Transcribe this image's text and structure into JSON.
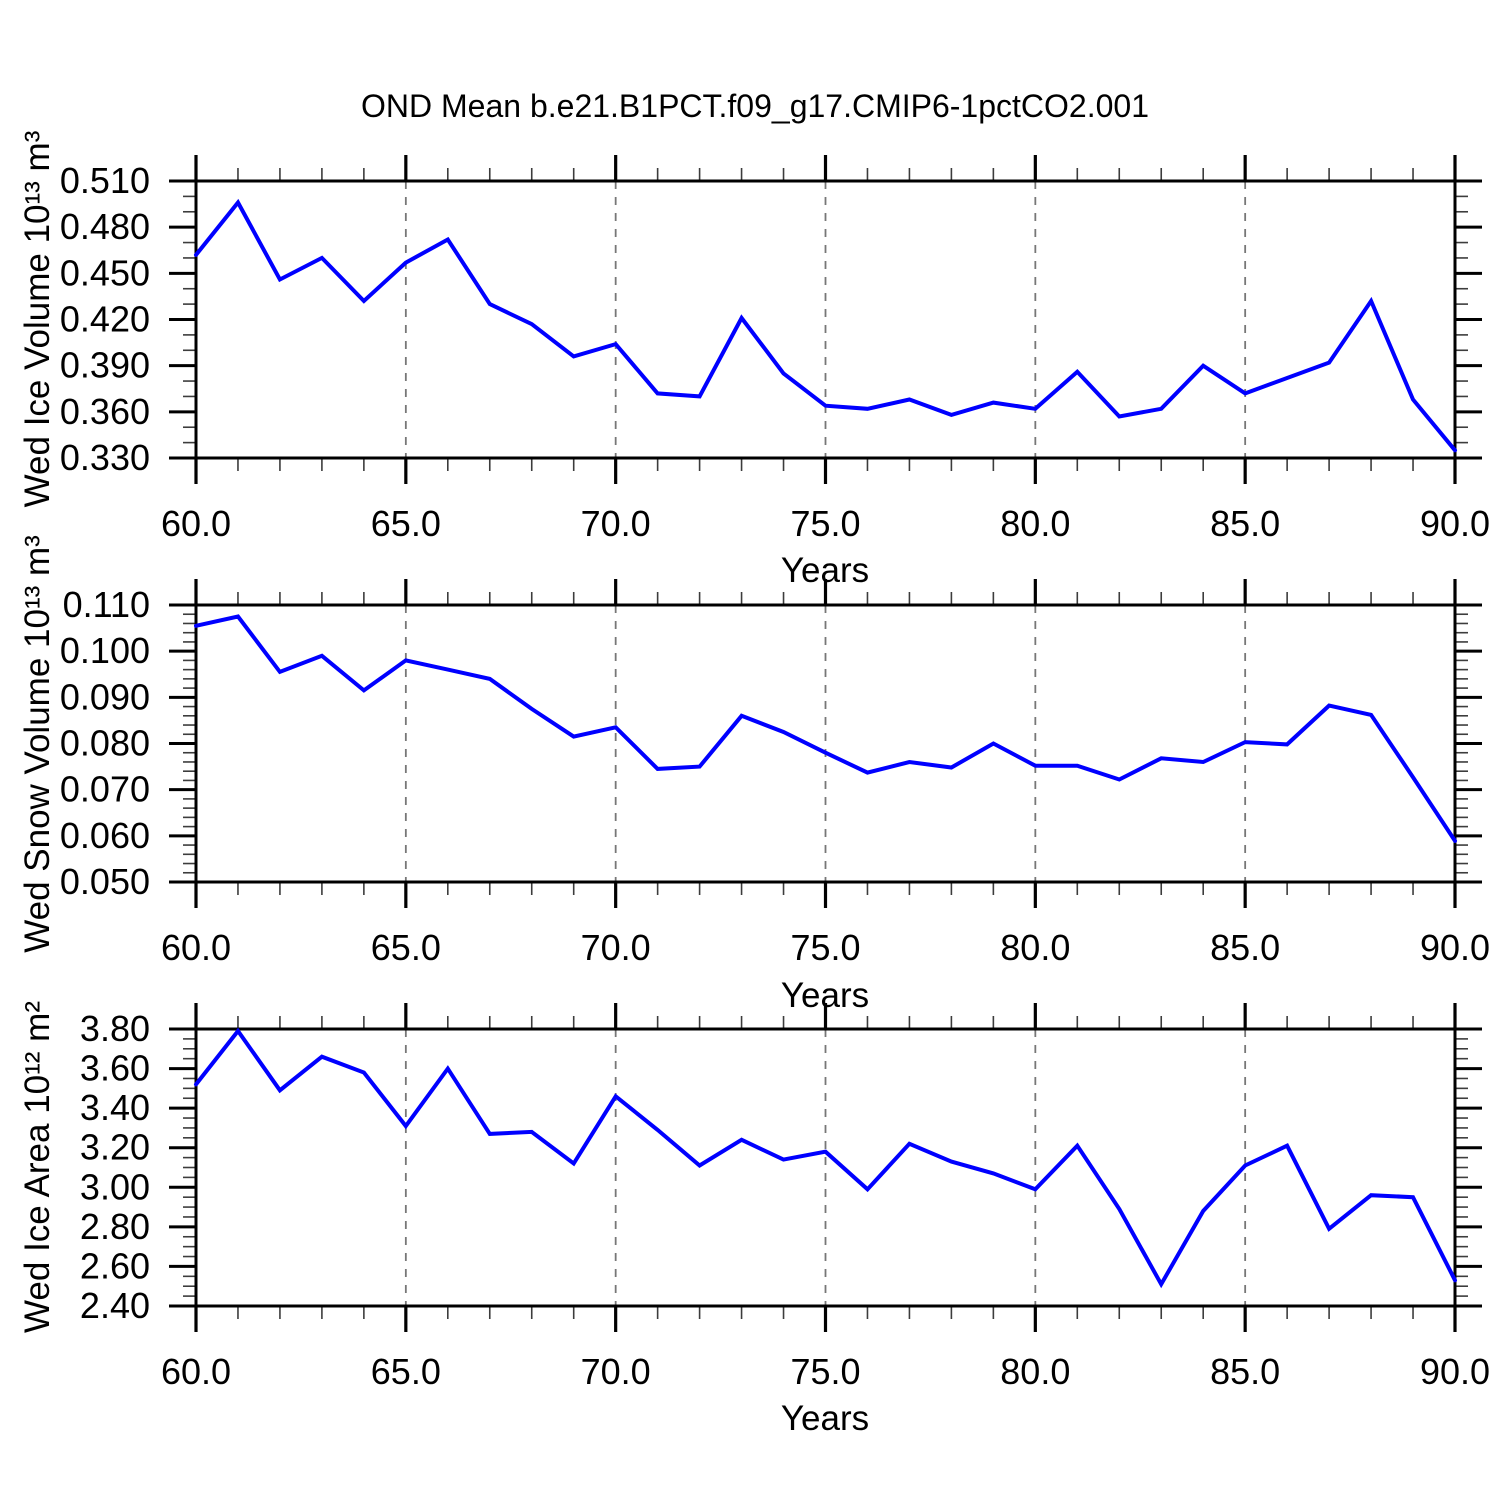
{
  "title": "OND Mean b.e21.B1PCT.f09_g17.CMIP6-1pctCO2.001",
  "colors": {
    "line": "#0000ff",
    "frame": "#000000",
    "grid": "#777777",
    "minor_tick": "#3c3c3c",
    "text": "#000000"
  },
  "chart_data": [
    {
      "type": "line",
      "name": "ice-volume",
      "ylabel": "Wed Ice Volume 10¹³ m³",
      "xlabel": "Years",
      "xlim": [
        60,
        90
      ],
      "ylim": [
        0.33,
        0.51
      ],
      "grid_x": [
        65,
        70,
        75,
        80,
        85
      ],
      "grid_style": "vertical-dashed",
      "xticks": {
        "values": [
          60,
          65,
          70,
          75,
          80,
          85,
          90
        ],
        "labels": [
          "60.0",
          "65.0",
          "70.0",
          "75.0",
          "80.0",
          "85.0",
          "90.0"
        ],
        "minor_step": 1
      },
      "yticks": {
        "values": [
          0.33,
          0.36,
          0.39,
          0.42,
          0.45,
          0.48,
          0.51
        ],
        "labels": [
          "0.330",
          "0.360",
          "0.390",
          "0.420",
          "0.450",
          "0.480",
          "0.510"
        ],
        "minor_step": 0.01
      },
      "x": [
        60,
        61,
        62,
        63,
        64,
        65,
        66,
        67,
        68,
        69,
        70,
        71,
        72,
        73,
        74,
        75,
        76,
        77,
        78,
        79,
        80,
        81,
        82,
        83,
        84,
        85,
        86,
        87,
        88,
        89,
        90
      ],
      "values": [
        0.462,
        0.496,
        0.446,
        0.46,
        0.432,
        0.457,
        0.472,
        0.43,
        0.417,
        0.396,
        0.404,
        0.372,
        0.37,
        0.421,
        0.385,
        0.364,
        0.362,
        0.368,
        0.358,
        0.366,
        0.362,
        0.386,
        0.357,
        0.362,
        0.39,
        0.372,
        0.382,
        0.392,
        0.432,
        0.368,
        0.335
      ]
    },
    {
      "type": "line",
      "name": "snow-volume",
      "ylabel": "Wed Snow Volume 10¹³ m³",
      "xlabel": "Years",
      "xlim": [
        60,
        90
      ],
      "ylim": [
        0.05,
        0.11
      ],
      "grid_x": [
        65,
        70,
        75,
        80,
        85
      ],
      "grid_style": "vertical-dashed",
      "xticks": {
        "values": [
          60,
          65,
          70,
          75,
          80,
          85,
          90
        ],
        "labels": [
          "60.0",
          "65.0",
          "70.0",
          "75.0",
          "80.0",
          "85.0",
          "90.0"
        ],
        "minor_step": 1
      },
      "yticks": {
        "values": [
          0.05,
          0.06,
          0.07,
          0.08,
          0.09,
          0.1,
          0.11
        ],
        "labels": [
          "0.050",
          "0.060",
          "0.070",
          "0.080",
          "0.090",
          "0.100",
          "0.110"
        ],
        "minor_step": 0.002
      },
      "x": [
        60,
        61,
        62,
        63,
        64,
        65,
        66,
        67,
        68,
        69,
        70,
        71,
        72,
        73,
        74,
        75,
        76,
        77,
        78,
        79,
        80,
        81,
        82,
        83,
        84,
        85,
        86,
        87,
        88,
        89,
        90
      ],
      "values": [
        0.1055,
        0.1075,
        0.0955,
        0.099,
        0.0915,
        0.098,
        0.096,
        0.094,
        0.0875,
        0.0815,
        0.0835,
        0.0745,
        0.075,
        0.086,
        0.0825,
        0.078,
        0.0737,
        0.076,
        0.0748,
        0.08,
        0.0752,
        0.0752,
        0.0722,
        0.0768,
        0.076,
        0.0803,
        0.0798,
        0.0882,
        0.0862,
        0.0727,
        0.0589
      ]
    },
    {
      "type": "line",
      "name": "ice-area",
      "ylabel": "Wed Ice Area 10¹² m²",
      "xlabel": "Years",
      "xlim": [
        60,
        90
      ],
      "ylim": [
        2.4,
        3.8
      ],
      "grid_x": [
        65,
        70,
        75,
        80,
        85
      ],
      "grid_style": "vertical-dashed",
      "xticks": {
        "values": [
          60,
          65,
          70,
          75,
          80,
          85,
          90
        ],
        "labels": [
          "60.0",
          "65.0",
          "70.0",
          "75.0",
          "80.0",
          "85.0",
          "90.0"
        ],
        "minor_step": 1
      },
      "yticks": {
        "values": [
          2.4,
          2.6,
          2.8,
          3.0,
          3.2,
          3.4,
          3.6,
          3.8
        ],
        "labels": [
          "2.40",
          "2.60",
          "2.80",
          "3.00",
          "3.20",
          "3.40",
          "3.60",
          "3.80"
        ],
        "minor_step": 0.05
      },
      "x": [
        60,
        61,
        62,
        63,
        64,
        65,
        66,
        67,
        68,
        69,
        70,
        71,
        72,
        73,
        74,
        75,
        76,
        77,
        78,
        79,
        80,
        81,
        82,
        83,
        84,
        85,
        86,
        87,
        88,
        89,
        90
      ],
      "values": [
        3.52,
        3.79,
        3.49,
        3.66,
        3.58,
        3.31,
        3.6,
        3.27,
        3.28,
        3.12,
        3.46,
        3.29,
        3.11,
        3.24,
        3.14,
        3.18,
        2.99,
        3.22,
        3.13,
        3.07,
        2.99,
        3.21,
        2.89,
        2.51,
        2.88,
        3.11,
        3.21,
        2.79,
        2.96,
        2.95,
        2.53
      ]
    }
  ]
}
